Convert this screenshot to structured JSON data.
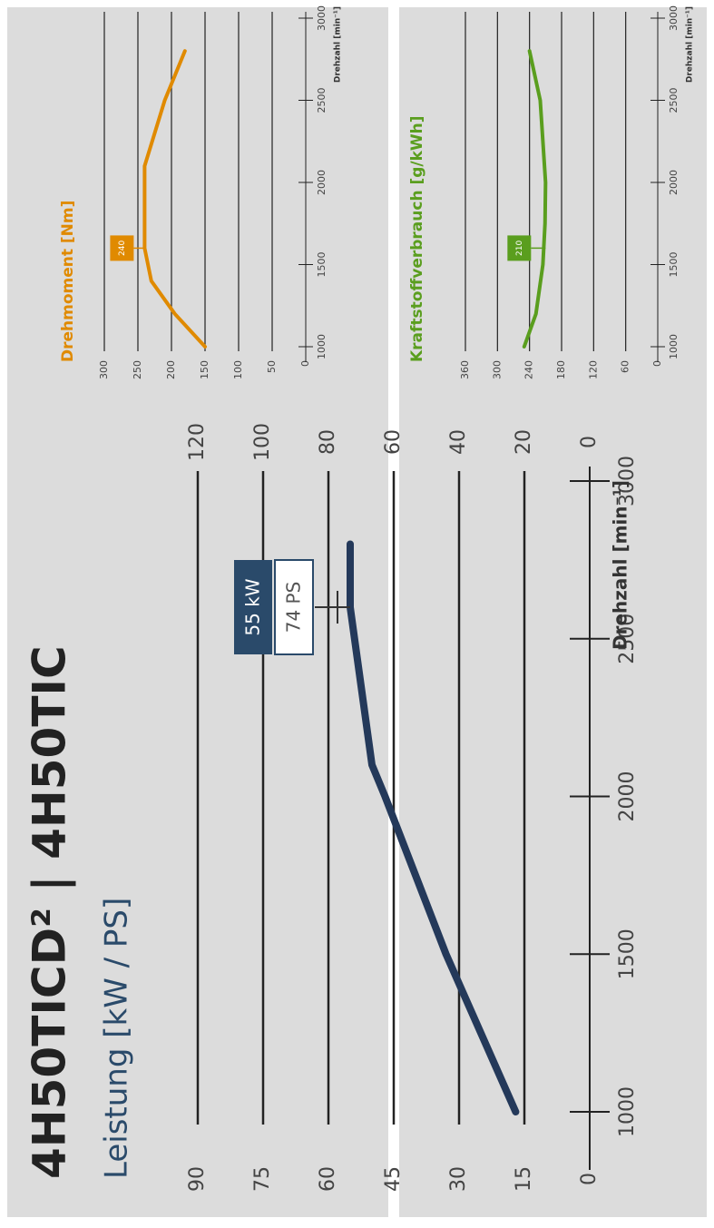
{
  "title": "4H50TICD² | 4H50TIC",
  "chart_data": [
    {
      "type": "line",
      "title": "Leistung [kW / PS]",
      "x_label": "Drehzahl [min⁻¹]",
      "x": [
        1000,
        1250,
        1500,
        1750,
        2000,
        2100,
        2300,
        2500,
        2600,
        2800
      ],
      "values": [
        17,
        25,
        33,
        40,
        47,
        50,
        52,
        54,
        55,
        55
      ],
      "color": "#24395a",
      "xlim": [
        1000,
        3000
      ],
      "xticks": [
        1000,
        1500,
        2000,
        2500,
        3000
      ],
      "ylim": [
        0,
        90
      ],
      "yticks": [
        0,
        15,
        30,
        45,
        60,
        75,
        90
      ],
      "y2lim": [
        0,
        120
      ],
      "y2ticks": [
        0,
        20,
        40,
        60,
        80,
        100,
        120
      ],
      "grid": true,
      "annotations": [
        "55 kW",
        "74 PS"
      ]
    },
    {
      "type": "line",
      "title": "Drehmoment [Nm]",
      "x_label": "Drehzahl [min⁻¹]",
      "x": [
        1000,
        1200,
        1400,
        1600,
        2100,
        2500,
        2800
      ],
      "values": [
        150,
        195,
        230,
        240,
        240,
        210,
        180
      ],
      "color": "#e08a00",
      "xlim": [
        1000,
        3000
      ],
      "xticks": [
        1000,
        1500,
        2000,
        2500,
        3000
      ],
      "ylim": [
        0,
        300
      ],
      "yticks": [
        0,
        50,
        100,
        150,
        200,
        250,
        300
      ],
      "grid": true,
      "annotation": 240
    },
    {
      "type": "line",
      "title": "Kraftstoffverbrauch [g/kWh]",
      "x_label": "Drehzahl [min⁻¹]",
      "x": [
        1000,
        1200,
        1500,
        1750,
        2000,
        2500,
        2800
      ],
      "values": [
        250,
        228,
        215,
        211,
        210,
        220,
        240
      ],
      "color": "#5a9e1e",
      "xlim": [
        1000,
        3000
      ],
      "xticks": [
        1000,
        1500,
        2000,
        2500,
        3000
      ],
      "ylim": [
        0,
        360
      ],
      "yticks": [
        0,
        60,
        120,
        180,
        240,
        300,
        360
      ],
      "grid": true,
      "annotation": 210
    }
  ]
}
